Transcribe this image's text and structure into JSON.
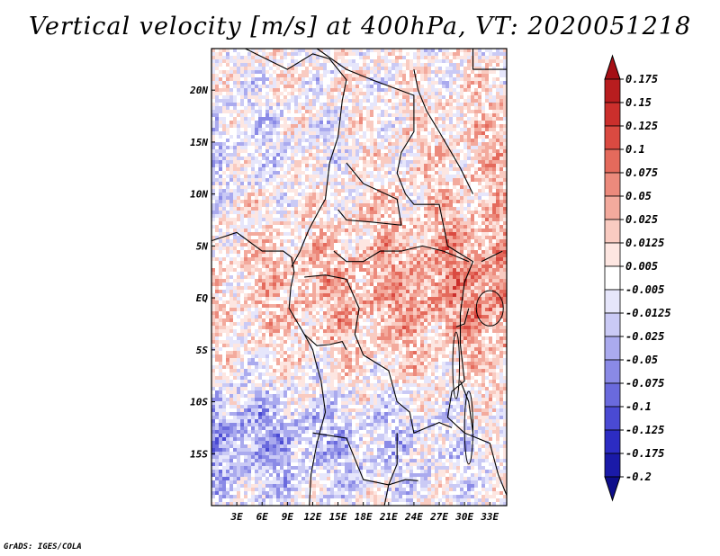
{
  "title": "Vertical velocity [m/s] at 400hPa, VT: 2020051218",
  "footer": "GrADS: IGES/COLA",
  "map": {
    "variable": "Vertical velocity",
    "units": "m/s",
    "level": "400hPa",
    "valid_time": "2020051218",
    "lat_labels": [
      "20N",
      "15N",
      "10N",
      "5N",
      "EQ",
      "5S",
      "10S",
      "15S"
    ],
    "lat_values": [
      20,
      15,
      10,
      5,
      0,
      -5,
      -10,
      -15
    ],
    "lon_labels": [
      "3E",
      "6E",
      "9E",
      "12E",
      "15E",
      "18E",
      "21E",
      "24E",
      "27E",
      "30E",
      "33E"
    ],
    "lon_values": [
      3,
      6,
      9,
      12,
      15,
      18,
      21,
      24,
      27,
      30,
      33
    ],
    "lon_range": [
      0,
      35
    ],
    "lat_range": [
      -20,
      24
    ]
  },
  "colorbar": {
    "labels": [
      "0.175",
      "0.15",
      "0.125",
      "0.1",
      "0.075",
      "0.05",
      "0.025",
      "0.0125",
      "0.005",
      "-0.005",
      "-0.0125",
      "-0.025",
      "-0.05",
      "-0.075",
      "-0.1",
      "-0.125",
      "-0.175",
      "-0.2"
    ],
    "colors": [
      "#a50f15",
      "#b81d1f",
      "#cb2f2c",
      "#da4a41",
      "#e46a5c",
      "#ec8a7c",
      "#f3aa9d",
      "#f9cbc1",
      "#fde6e1",
      "#ffffff",
      "#e6e6fb",
      "#cacaf5",
      "#aaaaee",
      "#8a8ae6",
      "#6a6add",
      "#4a4ad3",
      "#2c2cc3",
      "#1a1aa8",
      "#0d0d8a"
    ]
  }
}
